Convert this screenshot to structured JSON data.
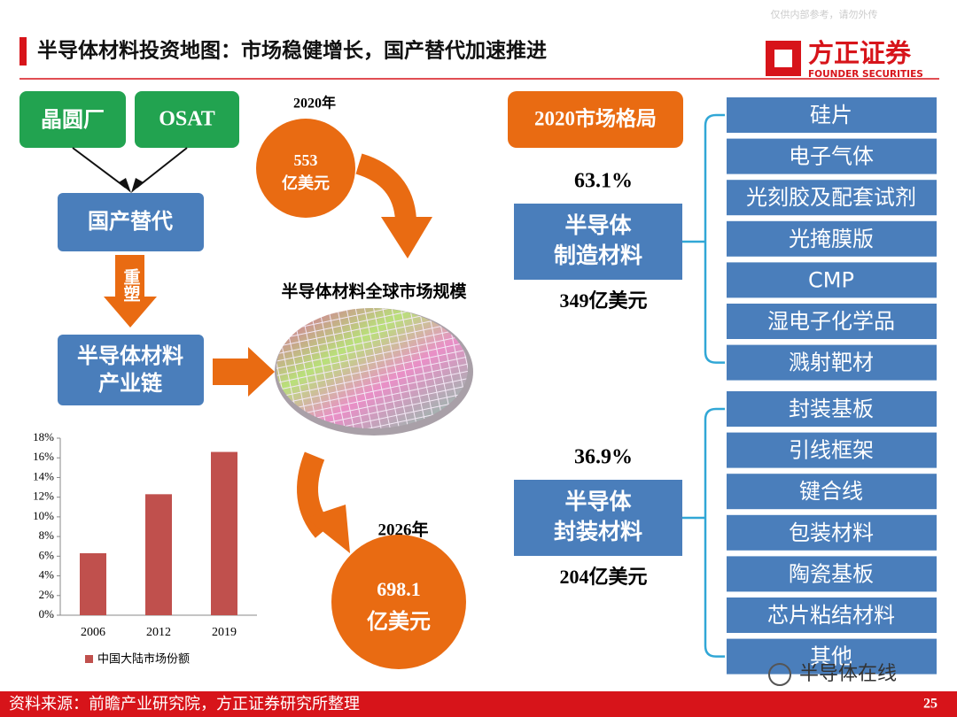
{
  "watermark": "仅供内部参考，请勿外传",
  "header": {
    "title": "半导体材料投资地图：市场稳健增长，国产替代加速推进"
  },
  "logo": {
    "name": "方正证券",
    "english": "FOUNDER SECURITIES"
  },
  "flow": {
    "sources": [
      "晶圆厂",
      "OSAT"
    ],
    "substitution": "国产替代",
    "reshape": "重塑",
    "chain": [
      "半导体材料",
      "产业链"
    ]
  },
  "market": {
    "start": {
      "year": "2020年",
      "value": "553",
      "unit": "亿美元"
    },
    "label": "半导体材料全球市场规模",
    "end": {
      "year": "2026年",
      "value": "698.1",
      "unit": "亿美元"
    }
  },
  "structure": {
    "title": "2020市场格局",
    "segments": [
      {
        "share": "63.1%",
        "name": [
          "半导体",
          "制造材料"
        ],
        "size": "349亿美元",
        "items": [
          "硅片",
          "电子气体",
          "光刻胶及配套试剂",
          "光掩膜版",
          "CMP",
          "湿电子化学品",
          "溅射靶材"
        ]
      },
      {
        "share": "36.9%",
        "name": [
          "半导体",
          "封装材料"
        ],
        "size": "204亿美元",
        "items": [
          "封装基板",
          "引线框架",
          "键合线",
          "包装材料",
          "陶瓷基板",
          "芯片粘结材料",
          "其他"
        ]
      }
    ]
  },
  "chart_data": {
    "type": "bar",
    "categories": [
      "2006",
      "2012",
      "2019"
    ],
    "series": [
      {
        "name": "中国大陆市场份额",
        "color": "#c0504d",
        "values": [
          6.3,
          12.3,
          16.6
        ]
      }
    ],
    "ylim": [
      0,
      18
    ],
    "yticks": [
      {
        "value": 0,
        "label": "0%"
      },
      {
        "value": 2,
        "label": "2%"
      },
      {
        "value": 4,
        "label": "4%"
      },
      {
        "value": 6,
        "label": "6%"
      },
      {
        "value": 8,
        "label": "8%"
      },
      {
        "value": 10,
        "label": "10%"
      },
      {
        "value": 12,
        "label": "12%"
      },
      {
        "value": 14,
        "label": "14%"
      },
      {
        "value": 16,
        "label": "16%"
      },
      {
        "value": 18,
        "label": "18%"
      }
    ],
    "legend": "bottom"
  },
  "footer": {
    "source": "资料来源：前瞻产业研究院，方正证券研究所整理",
    "page": "25"
  },
  "badge": "半导体在线"
}
